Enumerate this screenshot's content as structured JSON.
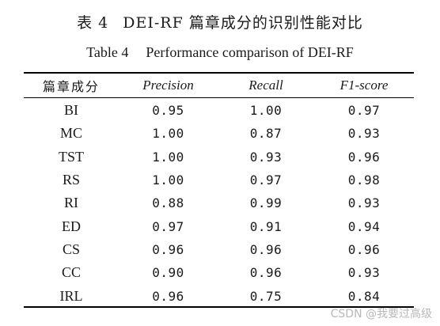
{
  "caption": {
    "cn_number": "表 4",
    "cn_title": "DEI-RF 篇章成分的识别性能对比",
    "en_number": "Table 4",
    "en_title": "Performance comparison of DEI-RF"
  },
  "table": {
    "headers": [
      "篇章成分",
      "Precision",
      "Recall",
      "F1-score"
    ],
    "rows": [
      {
        "component": "BI",
        "precision": "0.95",
        "recall": "1.00",
        "f1": "0.97"
      },
      {
        "component": "MC",
        "precision": "1.00",
        "recall": "0.87",
        "f1": "0.93"
      },
      {
        "component": "TST",
        "precision": "1.00",
        "recall": "0.93",
        "f1": "0.96"
      },
      {
        "component": "RS",
        "precision": "1.00",
        "recall": "0.97",
        "f1": "0.98"
      },
      {
        "component": "RI",
        "precision": "0.88",
        "recall": "0.99",
        "f1": "0.93"
      },
      {
        "component": "ED",
        "precision": "0.97",
        "recall": "0.91",
        "f1": "0.94"
      },
      {
        "component": "CS",
        "precision": "0.96",
        "recall": "0.96",
        "f1": "0.96"
      },
      {
        "component": "CC",
        "precision": "0.90",
        "recall": "0.96",
        "f1": "0.93"
      },
      {
        "component": "IRL",
        "precision": "0.96",
        "recall": "0.75",
        "f1": "0.84"
      }
    ]
  },
  "watermark": "CSDN @我要过高级"
}
